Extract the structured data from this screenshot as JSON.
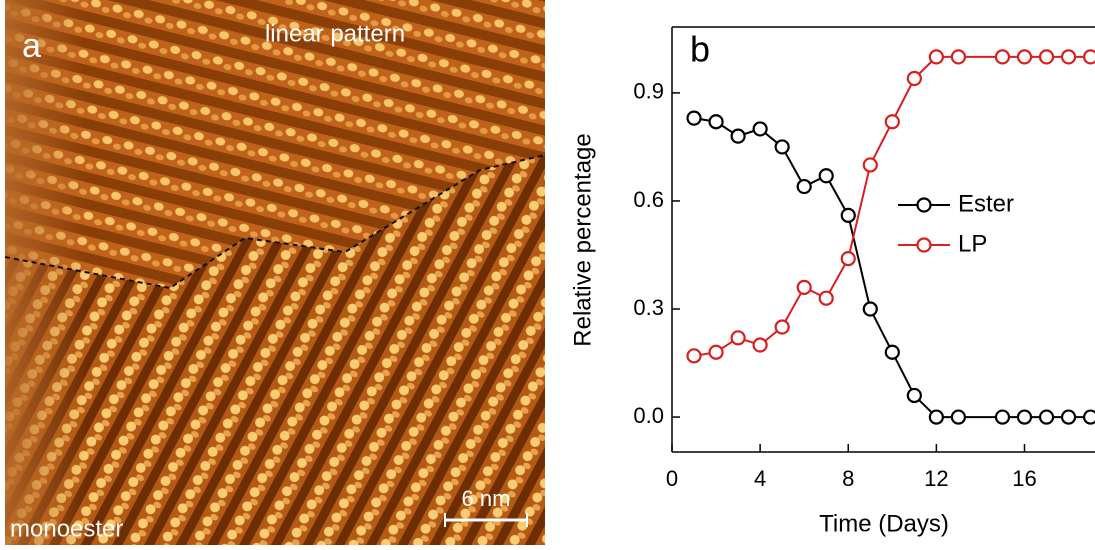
{
  "image_panel": {
    "panel_label": "a",
    "top_label": "linear pattern",
    "bottom_label": "monoester",
    "scale_bar": "6 nm"
  },
  "chart_data": {
    "type": "line",
    "panel_label": "b",
    "x_label": "Time (Days)",
    "y_label": "Relative percentage",
    "x": [
      1,
      2,
      3,
      4,
      5,
      6,
      7,
      8,
      9,
      10,
      11,
      12,
      13,
      15,
      16,
      17,
      18,
      19
    ],
    "series": [
      {
        "name": "Ester",
        "color": "#000000",
        "values": [
          0.83,
          0.82,
          0.78,
          0.8,
          0.75,
          0.64,
          0.67,
          0.56,
          0.3,
          0.18,
          0.06,
          0.0,
          0.0,
          0.0,
          0.0,
          0.0,
          0.0,
          0.0
        ]
      },
      {
        "name": "LP",
        "color": "#d81e1e",
        "values": [
          0.17,
          0.18,
          0.22,
          0.2,
          0.25,
          0.36,
          0.33,
          0.44,
          0.7,
          0.82,
          0.94,
          1.0,
          1.0,
          1.0,
          1.0,
          1.0,
          1.0,
          1.0
        ]
      }
    ],
    "xlim": [
      0,
      19.2
    ],
    "ylim": [
      -0.097,
      1.083
    ],
    "xticks": [
      0,
      4,
      8,
      12,
      16
    ],
    "yticks": [
      {
        "value": 0,
        "label": "0.0"
      },
      0.3,
      0.6,
      0.9
    ]
  }
}
